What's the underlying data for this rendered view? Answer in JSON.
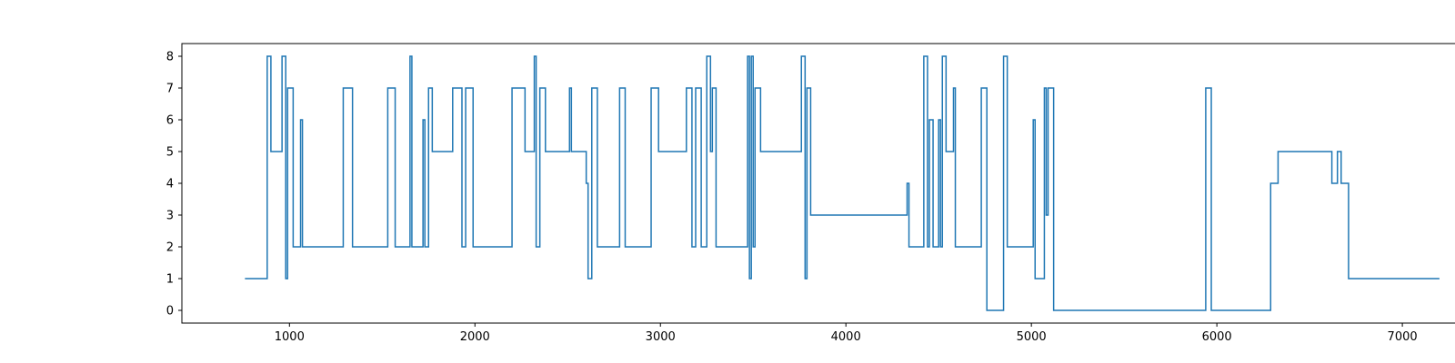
{
  "chart_data": {
    "type": "line",
    "title": "",
    "xlabel": "",
    "ylabel": "",
    "xlim": [
      420,
      7480
    ],
    "ylim": [
      -0.4,
      8.4
    ],
    "xticks": [
      1000,
      2000,
      3000,
      4000,
      5000,
      6000,
      7000
    ],
    "yticks": [
      0,
      1,
      2,
      3,
      4,
      5,
      6,
      7,
      8
    ],
    "xtick_labels": [
      "1000",
      "2000",
      "3000",
      "4000",
      "5000",
      "6000",
      "7000"
    ],
    "ytick_labels": [
      "0",
      "1",
      "2",
      "3",
      "4",
      "5",
      "6",
      "7",
      "8"
    ],
    "grid": false,
    "line_color": "#1f77b4",
    "series": [
      {
        "step": "post",
        "x": [
          760,
          880,
          900,
          960,
          980,
          990,
          1020,
          1060,
          1070,
          1080,
          1290,
          1340,
          1530,
          1570,
          1650,
          1660,
          1720,
          1730,
          1750,
          1770,
          1800,
          1880,
          1930,
          1950,
          1990,
          2200,
          2270,
          2320,
          2330,
          2350,
          2380,
          2510,
          2520,
          2540,
          2600,
          2610,
          2630,
          2660,
          2780,
          2810,
          2950,
          2990,
          3140,
          3170,
          3190,
          3220,
          3250,
          3270,
          3280,
          3300,
          3330,
          3470,
          3480,
          3490,
          3500,
          3510,
          3540,
          3580,
          3760,
          3780,
          3790,
          3810,
          4330,
          4340,
          4350,
          4420,
          4440,
          4450,
          4470,
          4500,
          4510,
          4520,
          4540,
          4560,
          4580,
          4590,
          4730,
          4760,
          4820,
          4850,
          4870,
          5010,
          5020,
          5070,
          5080,
          5090,
          5120,
          5940,
          5970,
          6290,
          6330,
          6620,
          6650,
          6670,
          6710,
          6730,
          7040,
          7050,
          7060,
          7200
        ],
        "y": [
          1,
          8,
          5,
          8,
          1,
          7,
          2,
          6,
          2,
          2,
          7,
          2,
          7,
          2,
          8,
          2,
          6,
          2,
          7,
          5,
          5,
          7,
          2,
          7,
          2,
          7,
          5,
          8,
          2,
          7,
          5,
          7,
          5,
          5,
          4,
          1,
          7,
          2,
          7,
          2,
          7,
          5,
          7,
          2,
          7,
          2,
          8,
          5,
          7,
          2,
          2,
          8,
          1,
          8,
          2,
          7,
          5,
          5,
          8,
          1,
          7,
          3,
          4,
          2,
          2,
          8,
          2,
          6,
          2,
          6,
          2,
          8,
          5,
          5,
          7,
          2,
          7,
          0,
          0,
          8,
          2,
          6,
          1,
          7,
          3,
          7,
          0,
          7,
          0,
          4,
          5,
          4,
          5,
          4,
          1,
          1,
          1,
          1,
          1,
          1
        ]
      }
    ]
  }
}
